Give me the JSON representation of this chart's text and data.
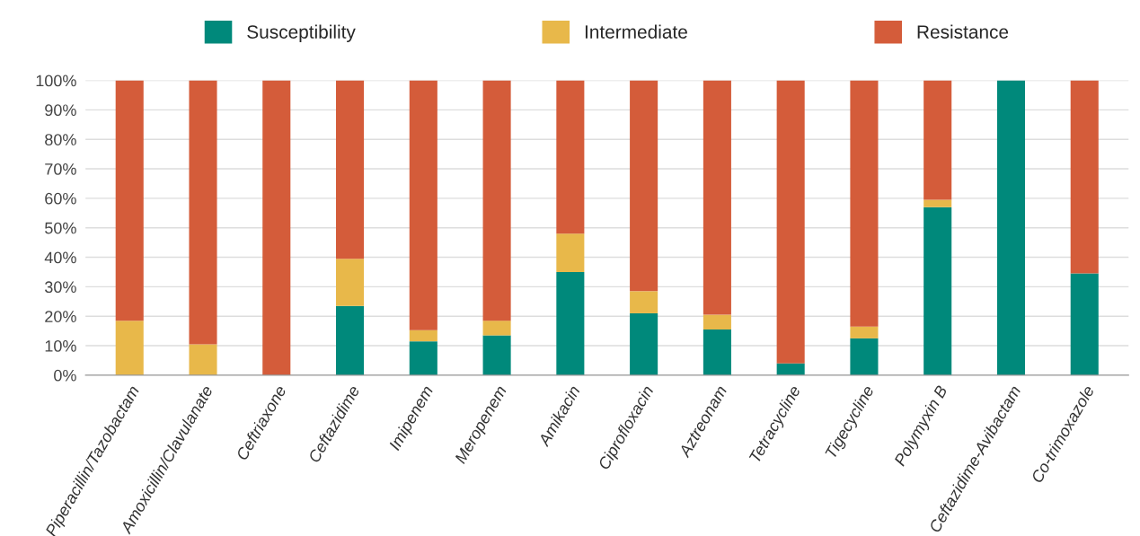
{
  "chart_data": {
    "type": "bar",
    "stacked": true,
    "categories": [
      "Piperacillin/Tazobactam",
      "Amoxicillin/Clavulanate",
      "Ceftriaxone",
      "Ceftazidime",
      "Imipenem",
      "Meropenem",
      "Amikacin",
      "Ciprofloxacin",
      "Aztreonam",
      "Tetracycline",
      "Tigecycline",
      "Polymyxin B",
      "Ceftazidime-Avibactam",
      "Co-trimoxazole"
    ],
    "series": [
      {
        "name": "Susceptibility",
        "color": "#00897b",
        "values": [
          0,
          0,
          0,
          23.5,
          11.5,
          13.5,
          35,
          21,
          15.5,
          4,
          12.5,
          57,
          100,
          34.5
        ]
      },
      {
        "name": "Intermediate",
        "color": "#e8b84a",
        "values": [
          18.5,
          10.5,
          0,
          16,
          3.8,
          5,
          13,
          7.5,
          5,
          0,
          4,
          2.5,
          0,
          0
        ]
      },
      {
        "name": "Resistance",
        "color": "#d45c3a",
        "values": [
          81.5,
          89.5,
          100,
          60.5,
          84.7,
          81.5,
          52,
          71.5,
          79.5,
          96,
          83.5,
          40.5,
          0,
          65.5
        ]
      }
    ],
    "ylim": [
      0,
      100
    ],
    "yticks": [
      {
        "value": 0,
        "label": "0%"
      },
      {
        "value": 10,
        "label": "10%"
      },
      {
        "value": 20,
        "label": "20%"
      },
      {
        "value": 30,
        "label": "30%"
      },
      {
        "value": 40,
        "label": "40%"
      },
      {
        "value": 50,
        "label": "50%"
      },
      {
        "value": 60,
        "label": "60%"
      },
      {
        "value": 70,
        "label": "70%"
      },
      {
        "value": 80,
        "label": "80%"
      },
      {
        "value": 90,
        "label": "90%"
      },
      {
        "value": 100,
        "label": "100%"
      }
    ],
    "grid": "y",
    "legend": "top"
  }
}
